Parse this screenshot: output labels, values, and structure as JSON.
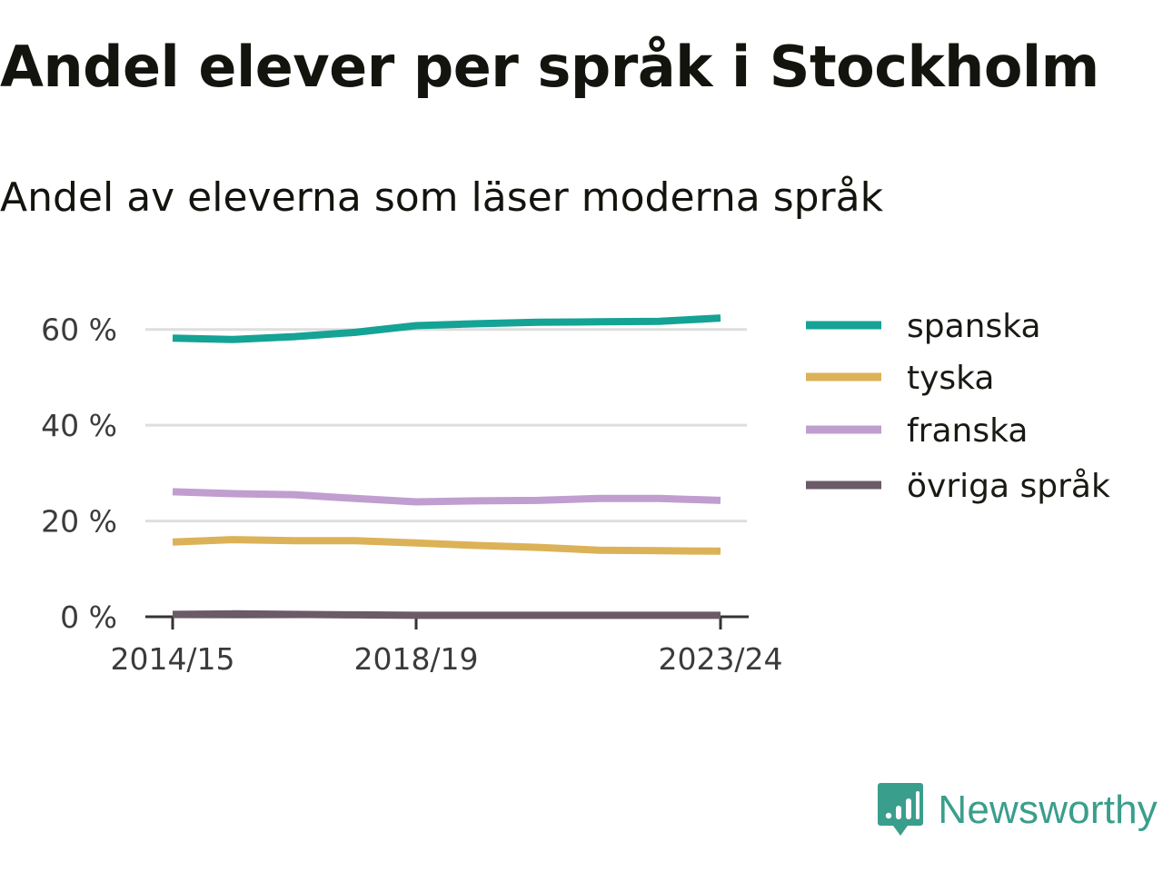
{
  "title": "Andel elever per språk i Stockholm",
  "subtitle": "Andel av eleverna som läser moderna språk",
  "brand": {
    "name": "Newsworthy",
    "icon": "newsworthy-logo-icon",
    "color": "#3a9e8c"
  },
  "chart_data": {
    "type": "line",
    "title": "",
    "xlabel": "",
    "ylabel": "",
    "x": [
      "2014/15",
      "2015/16",
      "2016/17",
      "2017/18",
      "2018/19",
      "2019/20",
      "2020/21",
      "2021/22",
      "2022/23",
      "2023/24"
    ],
    "x_ticks": [
      "2014/15",
      "2018/19",
      "2023/24"
    ],
    "y_ticks": [
      0,
      20,
      40,
      60
    ],
    "y_tick_labels": [
      "0 %",
      "20 %",
      "40 %",
      "60 %"
    ],
    "ylim": [
      0,
      70
    ],
    "grid": true,
    "legend_position": "right",
    "series": [
      {
        "name": "spanska",
        "color": "#14a395",
        "values": [
          58.2,
          57.9,
          58.5,
          59.4,
          60.8,
          61.2,
          61.5,
          61.6,
          61.7,
          62.4
        ]
      },
      {
        "name": "tyska",
        "color": "#dcb258",
        "values": [
          15.6,
          16.1,
          15.9,
          15.9,
          15.4,
          14.9,
          14.5,
          13.9,
          13.8,
          13.7
        ]
      },
      {
        "name": "franska",
        "color": "#c09ed0",
        "values": [
          26.1,
          25.7,
          25.5,
          24.7,
          24.0,
          24.2,
          24.3,
          24.7,
          24.7,
          24.3
        ]
      },
      {
        "name": "övriga språk",
        "color": "#6b5a68",
        "values": [
          0.5,
          0.6,
          0.5,
          0.4,
          0.3,
          0.3,
          0.3,
          0.3,
          0.3,
          0.3
        ]
      }
    ]
  }
}
